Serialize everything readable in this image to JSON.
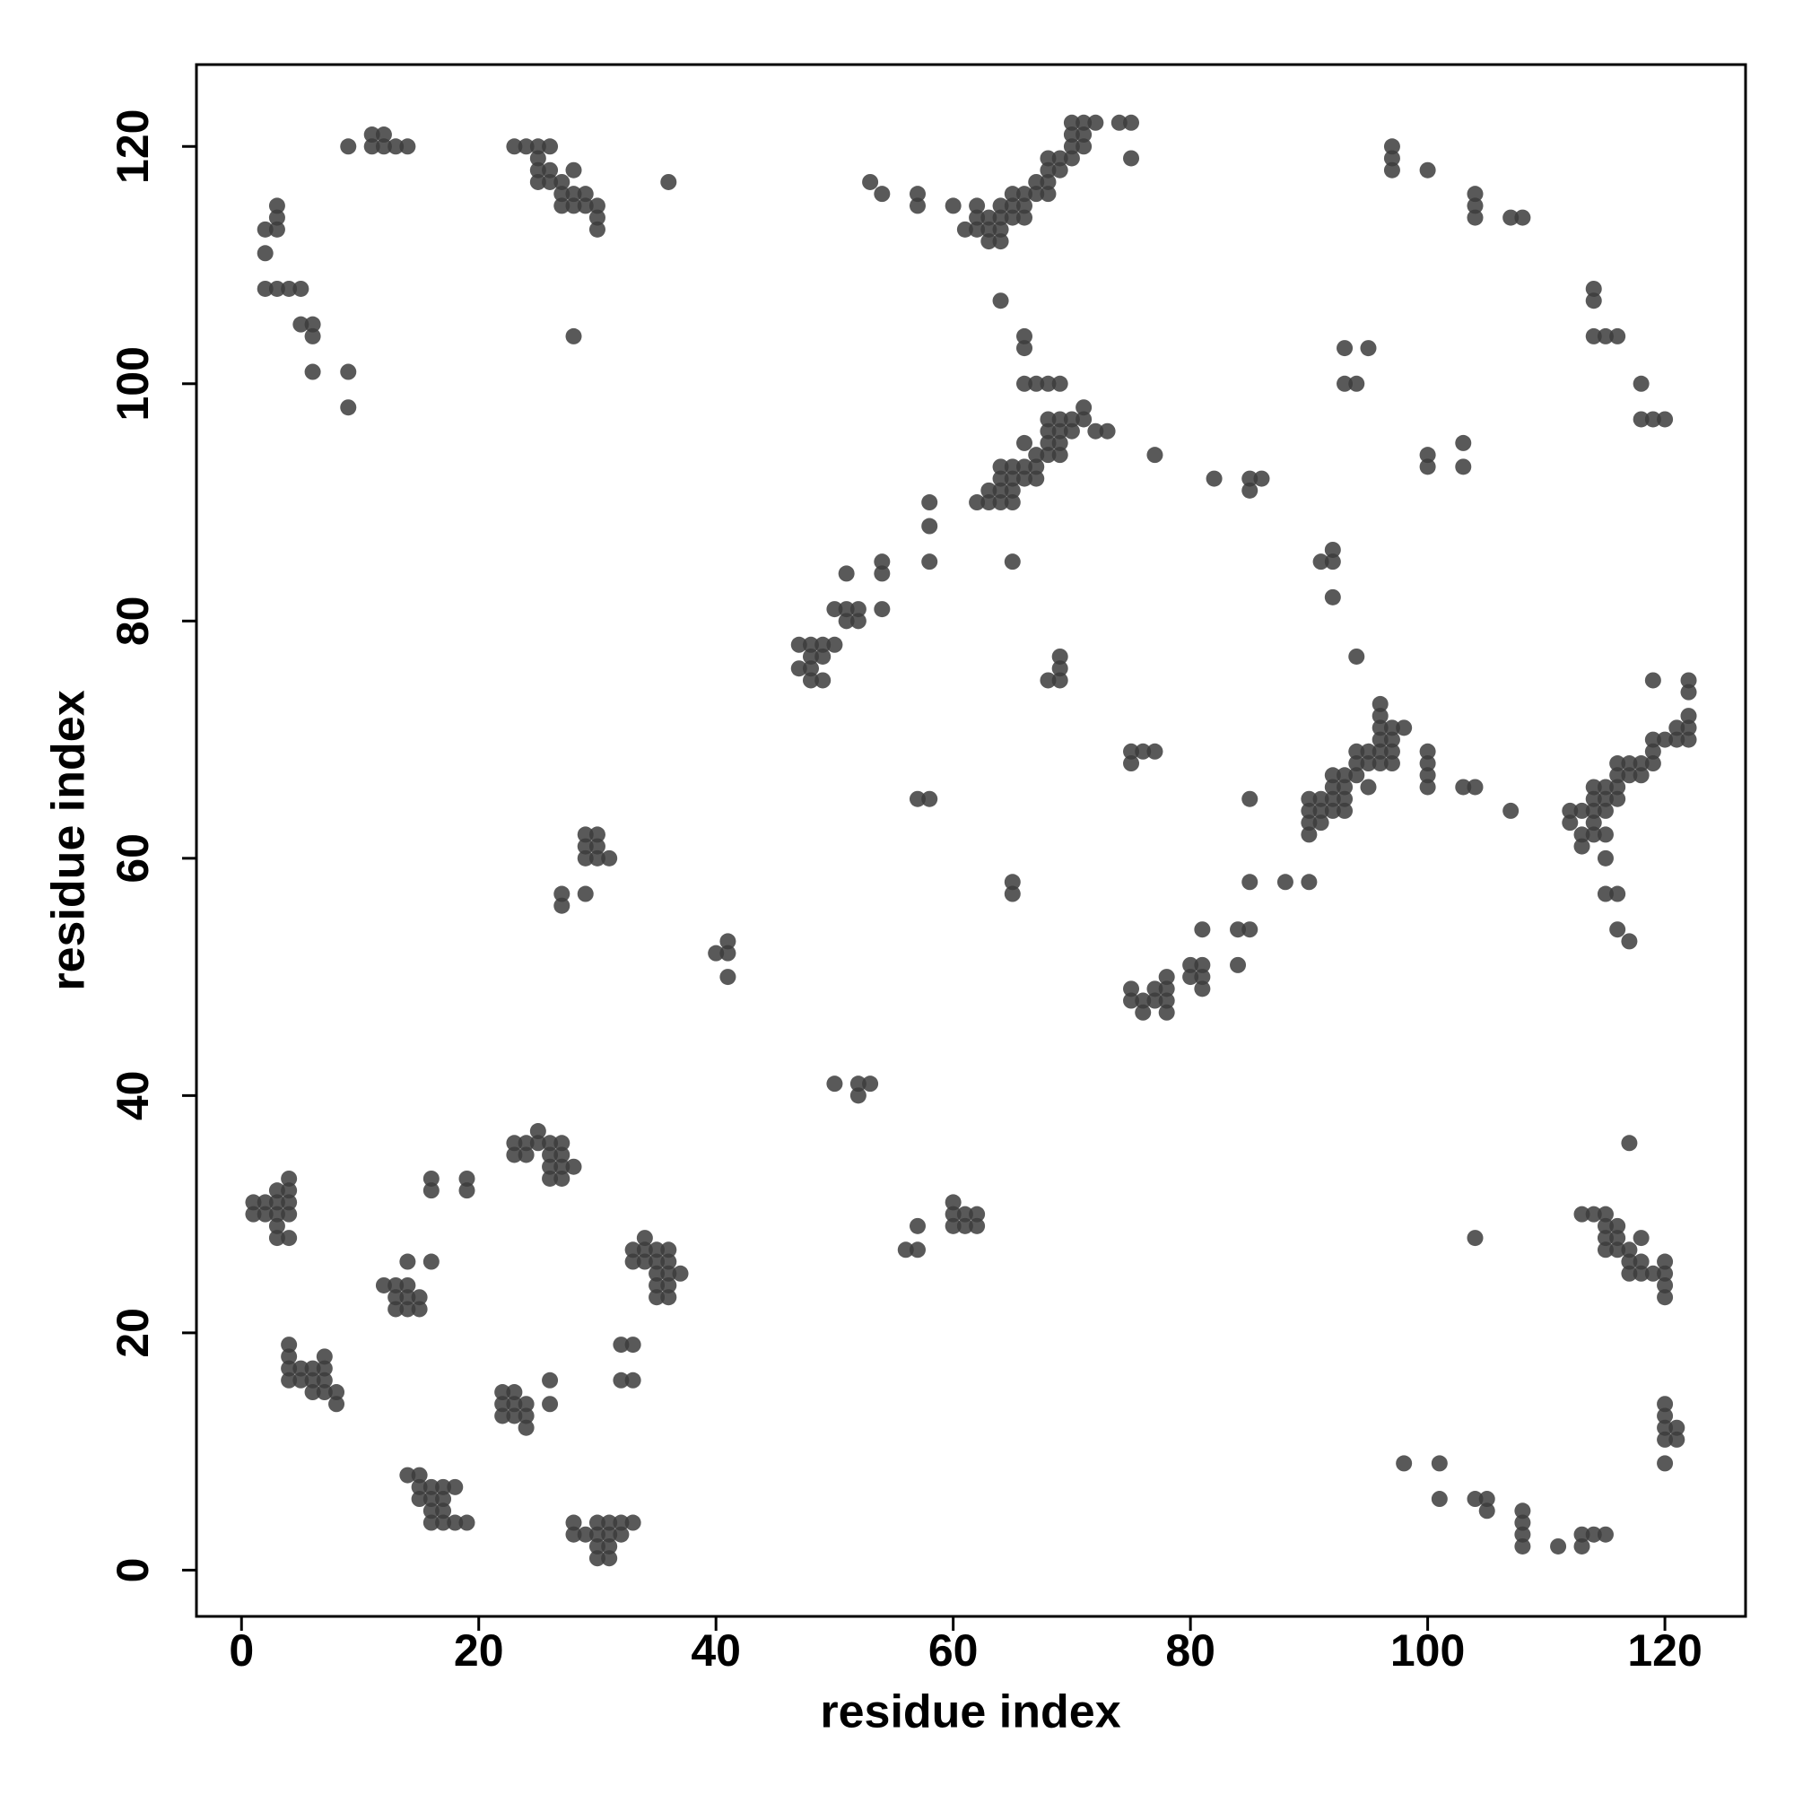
{
  "chart_data": {
    "type": "scatter",
    "xlabel": "residue index",
    "ylabel": "residue index",
    "color": "#3c3c3c",
    "xlim": [
      -3.8,
      126.8
    ],
    "ylim": [
      -3.9,
      126.9
    ],
    "xticks": [
      0,
      20,
      40,
      60,
      80,
      100,
      120
    ],
    "yticks": [
      0,
      20,
      40,
      60,
      80,
      100,
      120
    ],
    "x": [
      1,
      1,
      2,
      2,
      3,
      3,
      3,
      3,
      3,
      4,
      4,
      4,
      4,
      4,
      4,
      4,
      4,
      4,
      5,
      5,
      6,
      6,
      6,
      7,
      7,
      7,
      7,
      8,
      8,
      12,
      13,
      13,
      13,
      14,
      14,
      14,
      14,
      15,
      15,
      16,
      16,
      16,
      19,
      19,
      14,
      15,
      15,
      15,
      16,
      16,
      16,
      16,
      17,
      17,
      17,
      17,
      18,
      18,
      19,
      22,
      22,
      22,
      23,
      23,
      23,
      24,
      24,
      24,
      26,
      26,
      23,
      23,
      24,
      24,
      25,
      25,
      26,
      26,
      26,
      26,
      27,
      27,
      27,
      27,
      28,
      28,
      28,
      29,
      30,
      30,
      30,
      30,
      31,
      31,
      31,
      31,
      32,
      32,
      33,
      32,
      33,
      32,
      33,
      33,
      33,
      34,
      34,
      34,
      35,
      35,
      35,
      35,
      35,
      36,
      36,
      36,
      36,
      36,
      37,
      29,
      29,
      29,
      30,
      30,
      30,
      31,
      27,
      27,
      29,
      40,
      41,
      41,
      41,
      50,
      52,
      52,
      53,
      56,
      57,
      57,
      60,
      60,
      60,
      61,
      61,
      62,
      62,
      2,
      3,
      3,
      3,
      2,
      2,
      3,
      4,
      5,
      5,
      6,
      6,
      6,
      9,
      9,
      9,
      11,
      11,
      12,
      12,
      13,
      14,
      23,
      24,
      25,
      25,
      25,
      25,
      26,
      26,
      26,
      27,
      27,
      27,
      28,
      28,
      28,
      29,
      29,
      30,
      30,
      30,
      28,
      36,
      47,
      47,
      48,
      48,
      48,
      48,
      49,
      49,
      49,
      50,
      50,
      51,
      51,
      51,
      52,
      52,
      54,
      54,
      54,
      57,
      58,
      58,
      58,
      58,
      53,
      54,
      57,
      57,
      60,
      61,
      62,
      62,
      62,
      63,
      63,
      63,
      64,
      64,
      64,
      64,
      65,
      65,
      65,
      66,
      66,
      66,
      67,
      67,
      68,
      68,
      68,
      68,
      69,
      69,
      70,
      70,
      70,
      70,
      71,
      71,
      71,
      72,
      74,
      75,
      75,
      64,
      66,
      66,
      66,
      67,
      68,
      69,
      62,
      63,
      63,
      64,
      64,
      64,
      64,
      65,
      65,
      65,
      65,
      66,
      66,
      66,
      67,
      67,
      67,
      68,
      68,
      68,
      68,
      69,
      69,
      69,
      69,
      70,
      70,
      71,
      71,
      72,
      73,
      65,
      77,
      68,
      69,
      69,
      69,
      65,
      65,
      75,
      75,
      76,
      77,
      75,
      75,
      76,
      76,
      77,
      77,
      78,
      78,
      78,
      78,
      80,
      80,
      81,
      81,
      81,
      81,
      84,
      84,
      85,
      85,
      85,
      82,
      85,
      85,
      86,
      88,
      90,
      90,
      90,
      90,
      90,
      91,
      91,
      91,
      92,
      92,
      92,
      92,
      93,
      93,
      93,
      93,
      94,
      94,
      94,
      95,
      95,
      95,
      96,
      96,
      96,
      96,
      96,
      96,
      97,
      97,
      97,
      97,
      98,
      94,
      91,
      92,
      92,
      92,
      93,
      93,
      94,
      95,
      97,
      97,
      97,
      100,
      104,
      104,
      104,
      107,
      108,
      100,
      100,
      103,
      103,
      100,
      100,
      100,
      100,
      103,
      104,
      107,
      112,
      112,
      113,
      113,
      113,
      114,
      114,
      114,
      114,
      114,
      115,
      115,
      115,
      115,
      115,
      116,
      116,
      116,
      116,
      117,
      117,
      118,
      118,
      119,
      119,
      119,
      119,
      120,
      121,
      121,
      122,
      122,
      122,
      122,
      122,
      115,
      116,
      116,
      117,
      114,
      114,
      114,
      115,
      116,
      118,
      118,
      119,
      120,
      117,
      113,
      114,
      115,
      115,
      115,
      115,
      116,
      116,
      116,
      117,
      117,
      117,
      118,
      118,
      118,
      119,
      120,
      120,
      120,
      120,
      104,
      120,
      120,
      120,
      120,
      121,
      121,
      120,
      98,
      101,
      101,
      104,
      105,
      105,
      108,
      108,
      108,
      108,
      111,
      113,
      113,
      114,
      115
    ],
    "y": [
      31,
      30,
      31,
      30,
      30,
      31,
      32,
      29,
      28,
      28,
      30,
      31,
      32,
      33,
      19,
      18,
      17,
      16,
      17,
      16,
      17,
      16,
      15,
      18,
      17,
      16,
      15,
      15,
      14,
      24,
      24,
      23,
      22,
      26,
      24,
      23,
      22,
      23,
      22,
      26,
      33,
      32,
      33,
      32,
      8,
      8,
      7,
      6,
      7,
      6,
      5,
      4,
      7,
      6,
      5,
      4,
      7,
      4,
      4,
      15,
      14,
      13,
      15,
      14,
      13,
      14,
      13,
      12,
      16,
      14,
      36,
      35,
      36,
      35,
      37,
      36,
      36,
      35,
      34,
      33,
      36,
      35,
      34,
      33,
      34,
      4,
      3,
      3,
      4,
      3,
      2,
      1,
      4,
      3,
      2,
      1,
      4,
      3,
      4,
      19,
      19,
      16,
      16,
      27,
      26,
      28,
      27,
      26,
      27,
      26,
      25,
      24,
      23,
      27,
      26,
      25,
      24,
      23,
      25,
      62,
      61,
      60,
      62,
      61,
      60,
      60,
      57,
      56,
      57,
      52,
      53,
      52,
      50,
      41,
      41,
      40,
      41,
      27,
      29,
      27,
      31,
      30,
      29,
      30,
      29,
      30,
      29,
      113,
      113,
      114,
      115,
      111,
      108,
      108,
      108,
      108,
      105,
      105,
      104,
      101,
      101,
      98,
      120,
      121,
      120,
      121,
      120,
      120,
      120,
      120,
      120,
      120,
      119,
      118,
      117,
      120,
      118,
      117,
      117,
      116,
      115,
      118,
      116,
      115,
      116,
      115,
      115,
      114,
      113,
      104,
      117,
      78,
      76,
      78,
      77,
      76,
      75,
      78,
      77,
      75,
      81,
      78,
      81,
      80,
      84,
      81,
      80,
      85,
      84,
      81,
      65,
      65,
      90,
      88,
      85,
      117,
      116,
      116,
      115,
      115,
      113,
      115,
      114,
      113,
      114,
      113,
      112,
      115,
      114,
      113,
      112,
      116,
      115,
      114,
      116,
      115,
      114,
      117,
      116,
      119,
      118,
      117,
      116,
      119,
      118,
      122,
      121,
      120,
      119,
      122,
      121,
      120,
      122,
      122,
      122,
      119,
      107,
      104,
      103,
      100,
      100,
      100,
      100,
      90,
      91,
      90,
      93,
      92,
      91,
      90,
      93,
      92,
      91,
      90,
      95,
      93,
      92,
      94,
      93,
      92,
      97,
      96,
      95,
      94,
      97,
      96,
      95,
      94,
      97,
      96,
      98,
      97,
      96,
      96,
      85,
      94,
      75,
      77,
      76,
      75,
      58,
      57,
      69,
      68,
      69,
      69,
      49,
      48,
      48,
      47,
      49,
      48,
      50,
      49,
      48,
      47,
      51,
      50,
      54,
      51,
      50,
      49,
      54,
      51,
      54,
      58,
      65,
      92,
      92,
      91,
      92,
      58,
      65,
      64,
      63,
      62,
      58,
      65,
      64,
      63,
      67,
      66,
      65,
      64,
      67,
      66,
      65,
      64,
      69,
      68,
      67,
      69,
      68,
      66,
      73,
      72,
      71,
      70,
      69,
      68,
      71,
      70,
      69,
      68,
      71,
      77,
      85,
      86,
      85,
      82,
      103,
      100,
      100,
      103,
      120,
      119,
      118,
      118,
      116,
      115,
      114,
      114,
      114,
      94,
      93,
      95,
      93,
      69,
      68,
      67,
      66,
      66,
      66,
      64,
      64,
      63,
      64,
      62,
      61,
      66,
      65,
      64,
      63,
      62,
      66,
      65,
      64,
      62,
      60,
      68,
      67,
      66,
      65,
      68,
      67,
      68,
      67,
      70,
      69,
      68,
      75,
      70,
      71,
      70,
      75,
      74,
      72,
      71,
      70,
      57,
      57,
      54,
      53,
      108,
      107,
      104,
      104,
      104,
      100,
      97,
      97,
      97,
      36,
      30,
      30,
      30,
      29,
      28,
      27,
      29,
      28,
      27,
      27,
      26,
      25,
      28,
      26,
      25,
      25,
      26,
      25,
      24,
      23,
      28,
      14,
      13,
      12,
      11,
      12,
      11,
      9,
      9,
      9,
      6,
      6,
      6,
      5,
      5,
      4,
      3,
      2,
      2,
      3,
      2,
      3,
      3
    ]
  }
}
